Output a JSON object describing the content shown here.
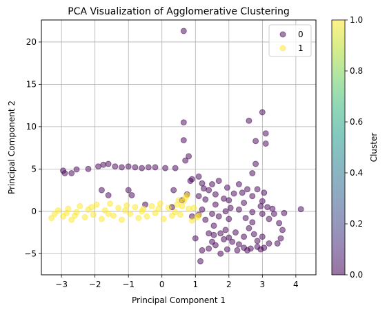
{
  "chart_data": {
    "type": "scatter",
    "title": "PCA Visualization of Agglomerative Clustering",
    "xlabel": "Principal Component 1",
    "ylabel": "Principal Component 2",
    "xlim": [
      -3.6,
      4.6
    ],
    "ylim": [
      -7.5,
      22.6
    ],
    "xticks": [
      -3,
      -2,
      -1,
      0,
      1,
      2,
      3,
      4
    ],
    "xtick_labels": [
      "−3",
      "−2",
      "−1",
      "0",
      "1",
      "2",
      "3",
      "4"
    ],
    "yticks": [
      -5,
      0,
      5,
      10,
      15,
      20
    ],
    "ytick_labels": [
      "−5",
      "0",
      "5",
      "10",
      "15",
      "20"
    ],
    "grid": true,
    "marker_alpha": 0.5,
    "legend": {
      "position": "top-right",
      "entries": [
        {
          "label": "0",
          "color": "#440154"
        },
        {
          "label": "1",
          "color": "#fde725"
        }
      ]
    },
    "colorbar": {
      "label": "Cluster",
      "range": [
        0.0,
        1.0
      ],
      "ticks": [
        0.0,
        0.2,
        0.4,
        0.6,
        0.8,
        1.0
      ],
      "tick_labels": [
        "0.0",
        "0.2",
        "0.4",
        "0.6",
        "0.8",
        "1.0"
      ],
      "colormap": [
        "#440154",
        "#482878",
        "#3e4989",
        "#31688e",
        "#26828e",
        "#1f9e89",
        "#35b779",
        "#6ece58",
        "#b5de2b",
        "#fde725"
      ]
    },
    "series": [
      {
        "name": "0",
        "color": "#440154",
        "points": [
          [
            0.65,
            21.3
          ],
          [
            0.65,
            10.5
          ],
          [
            0.65,
            8.4
          ],
          [
            0.7,
            6.0
          ],
          [
            0.8,
            6.5
          ],
          [
            2.6,
            10.7
          ],
          [
            3.0,
            11.7
          ],
          [
            2.8,
            8.3
          ],
          [
            3.1,
            9.2
          ],
          [
            3.1,
            8.0
          ],
          [
            2.8,
            5.6
          ],
          [
            2.7,
            4.5
          ],
          [
            4.15,
            0.25
          ],
          [
            -2.9,
            4.5
          ],
          [
            -2.7,
            4.5
          ],
          [
            -2.95,
            4.8
          ],
          [
            -2.55,
            4.95
          ],
          [
            -2.2,
            5.0
          ],
          [
            -1.9,
            5.3
          ],
          [
            -1.75,
            5.5
          ],
          [
            -1.6,
            5.6
          ],
          [
            -1.4,
            5.3
          ],
          [
            -1.2,
            5.2
          ],
          [
            -1.0,
            5.3
          ],
          [
            -0.8,
            5.2
          ],
          [
            -0.6,
            5.1
          ],
          [
            -0.4,
            5.2
          ],
          [
            -0.2,
            5.2
          ],
          [
            0.1,
            5.1
          ],
          [
            0.4,
            5.1
          ],
          [
            -1.8,
            2.5
          ],
          [
            -1.6,
            1.9
          ],
          [
            -1.0,
            2.5
          ],
          [
            -0.9,
            1.9
          ],
          [
            -0.5,
            0.8
          ],
          [
            0.3,
            0.5
          ],
          [
            0.75,
            2.0
          ],
          [
            0.9,
            3.8
          ],
          [
            1.1,
            4.1
          ],
          [
            1.2,
            3.3
          ],
          [
            0.85,
            3.6
          ],
          [
            1.1,
            1.8
          ],
          [
            1.2,
            0.2
          ],
          [
            1.3,
            1.4
          ],
          [
            1.4,
            2.5
          ],
          [
            1.5,
            3.2
          ],
          [
            1.6,
            2.0
          ],
          [
            1.7,
            3.6
          ],
          [
            1.85,
            1.5
          ],
          [
            1.95,
            2.8
          ],
          [
            2.05,
            0.4
          ],
          [
            2.15,
            2.1
          ],
          [
            2.3,
            3.2
          ],
          [
            2.45,
            1.0
          ],
          [
            2.55,
            2.6
          ],
          [
            2.7,
            1.8
          ],
          [
            2.85,
            2.6
          ],
          [
            3.0,
            1.2
          ],
          [
            3.15,
            0.5
          ],
          [
            3.3,
            0.3
          ],
          [
            3.35,
            -0.3
          ],
          [
            3.2,
            -0.9
          ],
          [
            2.5,
            -0.8
          ],
          [
            2.0,
            -0.9
          ],
          [
            1.7,
            -0.6
          ],
          [
            1.5,
            -0.3
          ],
          [
            1.3,
            -1.0
          ],
          [
            1.1,
            -0.4
          ],
          [
            0.9,
            -0.6
          ],
          [
            1.9,
            0.0
          ],
          [
            2.3,
            0.2
          ],
          [
            2.7,
            -0.1
          ],
          [
            3.0,
            -0.3
          ],
          [
            1.4,
            -2.6
          ],
          [
            1.55,
            -2.8
          ],
          [
            1.75,
            -2.6
          ],
          [
            1.9,
            -2.2
          ],
          [
            2.0,
            -3.1
          ],
          [
            2.2,
            -2.5
          ],
          [
            2.45,
            -3.0
          ],
          [
            2.6,
            -2.0
          ],
          [
            2.75,
            -2.7
          ],
          [
            3.0,
            -3.0
          ],
          [
            1.5,
            -3.6
          ],
          [
            1.6,
            -4.0
          ],
          [
            1.85,
            -3.3
          ],
          [
            2.1,
            -3.6
          ],
          [
            2.3,
            -3.9
          ],
          [
            2.45,
            -4.3
          ],
          [
            2.65,
            -4.4
          ],
          [
            2.85,
            -4.2
          ],
          [
            3.05,
            -4.3
          ],
          [
            3.2,
            -3.8
          ],
          [
            3.45,
            -3.8
          ],
          [
            3.55,
            -3.2
          ],
          [
            3.6,
            -2.2
          ],
          [
            3.5,
            -1.4
          ],
          [
            3.65,
            -0.2
          ],
          [
            1.4,
            -4.4
          ],
          [
            1.95,
            -4.5
          ],
          [
            2.25,
            -4.6
          ],
          [
            2.55,
            -4.6
          ],
          [
            2.95,
            -4.5
          ],
          [
            1.15,
            -5.9
          ],
          [
            1.75,
            -5.0
          ],
          [
            1.0,
            -3.2
          ],
          [
            1.2,
            -4.6
          ],
          [
            2.85,
            -3.5
          ],
          [
            1.6,
            0.8
          ],
          [
            2.0,
            1.3
          ],
          [
            2.4,
            2.2
          ],
          [
            2.95,
            0.6
          ],
          [
            3.05,
            2.2
          ],
          [
            1.25,
            2.7
          ],
          [
            0.6,
            1.3
          ],
          [
            0.35,
            2.5
          ],
          [
            1.55,
            -1.7
          ],
          [
            2.7,
            -1.3
          ]
        ]
      },
      {
        "name": "1",
        "color": "#fde725",
        "points": [
          [
            -3.3,
            -0.8
          ],
          [
            -3.1,
            0.1
          ],
          [
            -2.95,
            -0.6
          ],
          [
            -2.8,
            0.3
          ],
          [
            -2.7,
            -1.0
          ],
          [
            -2.55,
            -0.1
          ],
          [
            -2.45,
            0.6
          ],
          [
            -2.3,
            -0.7
          ],
          [
            -2.2,
            0.2
          ],
          [
            -2.05,
            -0.4
          ],
          [
            -1.95,
            0.8
          ],
          [
            -1.8,
            -0.9
          ],
          [
            -1.7,
            0.1
          ],
          [
            -1.55,
            0.9
          ],
          [
            -1.45,
            -0.5
          ],
          [
            -1.3,
            0.4
          ],
          [
            -1.2,
            -1.0
          ],
          [
            -1.05,
            0.7
          ],
          [
            -0.95,
            -0.3
          ],
          [
            -0.8,
            0.5
          ],
          [
            -0.7,
            -0.8
          ],
          [
            -0.55,
            0.3
          ],
          [
            -0.45,
            -0.6
          ],
          [
            -0.3,
            0.6
          ],
          [
            -0.2,
            -0.2
          ],
          [
            -0.05,
            0.9
          ],
          [
            0.05,
            -0.9
          ],
          [
            0.2,
            0.4
          ],
          [
            0.3,
            -0.5
          ],
          [
            0.45,
            0.8
          ],
          [
            0.55,
            -0.4
          ],
          [
            0.65,
            1.2
          ],
          [
            0.75,
            1.9
          ],
          [
            0.8,
            0.3
          ],
          [
            0.9,
            -1.1
          ],
          [
            -3.2,
            -0.3
          ],
          [
            -2.6,
            -0.5
          ],
          [
            -2.1,
            0.5
          ],
          [
            -1.6,
            -0.3
          ],
          [
            -1.1,
            0.1
          ],
          [
            -0.6,
            0.0
          ],
          [
            -0.1,
            0.3
          ],
          [
            0.4,
            -0.1
          ],
          [
            0.6,
            0.6
          ],
          [
            0.95,
            0.4
          ],
          [
            1.1,
            -0.5
          ],
          [
            1.05,
            -0.7
          ],
          [
            0.7,
            1.6
          ],
          [
            0.5,
            1.3
          ],
          [
            -2.85,
            -0.2
          ]
        ]
      }
    ]
  }
}
